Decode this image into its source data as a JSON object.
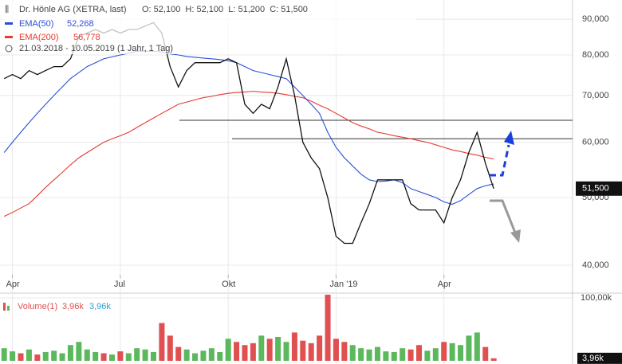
{
  "chart_data": {
    "type": "line",
    "log_scale": true,
    "grid": true,
    "title": "Dr. Hönle AG (XETRA, last)",
    "ohlc_text": "O: 52,100  H: 52,100  L: 51,200  C: 51,500",
    "period_text": "21.03.2018 - 10.05.2019 (1 Jahr, 1 Tag)",
    "last_label": "51,500",
    "categories": [
      null,
      "Apr",
      null,
      null,
      null,
      null,
      null,
      null,
      null,
      null,
      null,
      null,
      null,
      null,
      "Jul",
      null,
      null,
      null,
      null,
      null,
      null,
      null,
      null,
      null,
      null,
      null,
      null,
      "Okt",
      null,
      null,
      null,
      null,
      null,
      null,
      null,
      null,
      null,
      null,
      null,
      null,
      "Jan '19",
      null,
      null,
      null,
      null,
      null,
      null,
      null,
      null,
      null,
      null,
      null,
      null,
      "Apr",
      null,
      null,
      null,
      null,
      null,
      null,
      null,
      null,
      null,
      null,
      null,
      null,
      null,
      null,
      null
    ],
    "series": [
      {
        "name": "Close",
        "color": "#111111",
        "values": [
          74,
          75,
          74,
          76,
          75,
          76,
          77,
          77,
          79,
          85,
          86,
          87,
          86,
          87,
          86,
          87,
          87,
          88,
          89,
          86,
          77,
          72,
          76,
          78,
          78,
          78,
          78,
          79,
          78,
          68,
          66,
          68,
          67,
          72,
          79,
          70,
          60,
          57,
          55,
          50,
          44,
          43,
          43,
          46,
          49,
          53,
          53,
          53,
          53,
          49,
          48,
          48,
          48,
          46,
          50,
          53,
          58,
          62,
          56,
          51.5,
          null,
          null,
          null,
          null,
          null,
          null,
          null,
          null,
          null
        ]
      },
      {
        "name": "EMA(50)",
        "value_label": "52,268",
        "color": "#2b4fd8",
        "values": [
          58,
          60,
          62,
          64,
          66,
          68,
          70,
          72,
          74,
          75.5,
          77,
          78,
          79,
          79.5,
          80,
          80.5,
          81,
          81,
          81,
          80.8,
          80.3,
          80,
          79.6,
          79.4,
          79.2,
          79,
          78.8,
          78.5,
          78,
          77,
          76,
          75.5,
          75,
          74.5,
          74,
          72,
          70,
          68,
          66,
          62,
          59,
          57,
          55.5,
          54,
          53,
          52.7,
          52.8,
          53,
          52.5,
          51.5,
          51,
          50.5,
          50,
          49.3,
          48.9,
          49.5,
          50.5,
          51.5,
          52,
          52.268,
          null,
          null,
          null,
          null,
          null,
          null,
          null,
          null,
          null
        ]
      },
      {
        "name": "EMA(200)",
        "value_label": "56,778",
        "color": "#e8392e",
        "values": [
          47,
          47.6,
          48.3,
          49,
          50.3,
          51.7,
          53,
          54.3,
          55.7,
          57,
          58,
          59,
          60,
          60.7,
          61.3,
          62,
          63,
          64,
          65,
          66,
          67,
          68,
          68.5,
          69,
          69.5,
          69.8,
          70.2,
          70.5,
          70.7,
          70.8,
          71,
          70.8,
          70.7,
          70.5,
          70.2,
          69.8,
          69.5,
          68.7,
          67.8,
          67,
          66,
          65,
          64,
          63.3,
          62.7,
          62,
          61.7,
          61.3,
          61,
          60.7,
          60.3,
          60,
          59.5,
          59,
          58.5,
          58.2,
          57.8,
          57.5,
          57.1,
          56.778,
          null,
          null,
          null,
          null,
          null,
          null,
          null,
          null,
          null
        ]
      }
    ],
    "levels": [
      64.5,
      60.7
    ],
    "ylim": [
      38.76,
      95.9
    ],
    "yticks": [
      {
        "value": 40,
        "label": "40,000"
      },
      {
        "value": 50,
        "label": "50,000"
      },
      {
        "value": 60,
        "label": "60,000"
      },
      {
        "value": 70,
        "label": "70,000"
      },
      {
        "value": 80,
        "label": "80,000"
      },
      {
        "value": 90,
        "label": "90,000"
      }
    ],
    "volume": {
      "name": "Volume(1)",
      "value_label": "3,96k",
      "value_label_2": "3,96k",
      "up_color": "#5cb85c",
      "down_color": "#e05050",
      "values": [
        20,
        15,
        12,
        18,
        10,
        14,
        16,
        12,
        25,
        30,
        18,
        14,
        12,
        10,
        15,
        12,
        20,
        18,
        14,
        60,
        40,
        22,
        18,
        12,
        16,
        20,
        14,
        35,
        30,
        25,
        28,
        40,
        35,
        38,
        30,
        45,
        32,
        28,
        40,
        110,
        35,
        30,
        25,
        20,
        18,
        22,
        15,
        14,
        20,
        18,
        25,
        16,
        20,
        30,
        28,
        25,
        40,
        45,
        22,
        3.96,
        null,
        null,
        null,
        null,
        null,
        null,
        null,
        null,
        null
      ],
      "ylim": [
        0,
        105
      ],
      "yticks": [
        {
          "value": 100,
          "label": "100,00k"
        }
      ],
      "last_label": "3,96k"
    }
  }
}
